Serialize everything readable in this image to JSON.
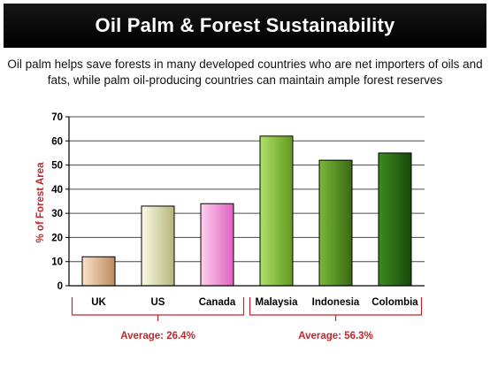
{
  "header": {
    "title": "Oil Palm & Forest Sustainability"
  },
  "subtitle": "Oil palm helps save forests in many developed countries who are net importers of oils and fats, while palm oil-producing countries can maintain ample forest reserves",
  "chart_data": {
    "type": "bar",
    "ylabel": "% of Forest  Area",
    "xlabel": "",
    "ylim": [
      0,
      70
    ],
    "yticks": [
      0,
      10,
      20,
      30,
      40,
      50,
      60,
      70
    ],
    "grid": true,
    "categories": [
      "UK",
      "US",
      "Canada",
      "Malaysia",
      "Indonesia",
      "Colombia"
    ],
    "values": [
      12,
      33,
      34,
      62,
      52,
      55
    ],
    "bar_colors": [
      [
        "#fde3c8",
        "#b88a5e"
      ],
      [
        "#fbfbe6",
        "#b6b57a"
      ],
      [
        "#fdd0ee",
        "#e060c0"
      ],
      [
        "#b2e06a",
        "#5e9a1c"
      ],
      [
        "#7ab83a",
        "#3a6a12"
      ],
      [
        "#3f8a22",
        "#174a0a"
      ]
    ],
    "groups": [
      {
        "label": "Average: 26.4%",
        "start": 0,
        "end": 2
      },
      {
        "label": "Average: 56.3%",
        "start": 3,
        "end": 5
      }
    ],
    "accent_color": "#c0272d"
  }
}
